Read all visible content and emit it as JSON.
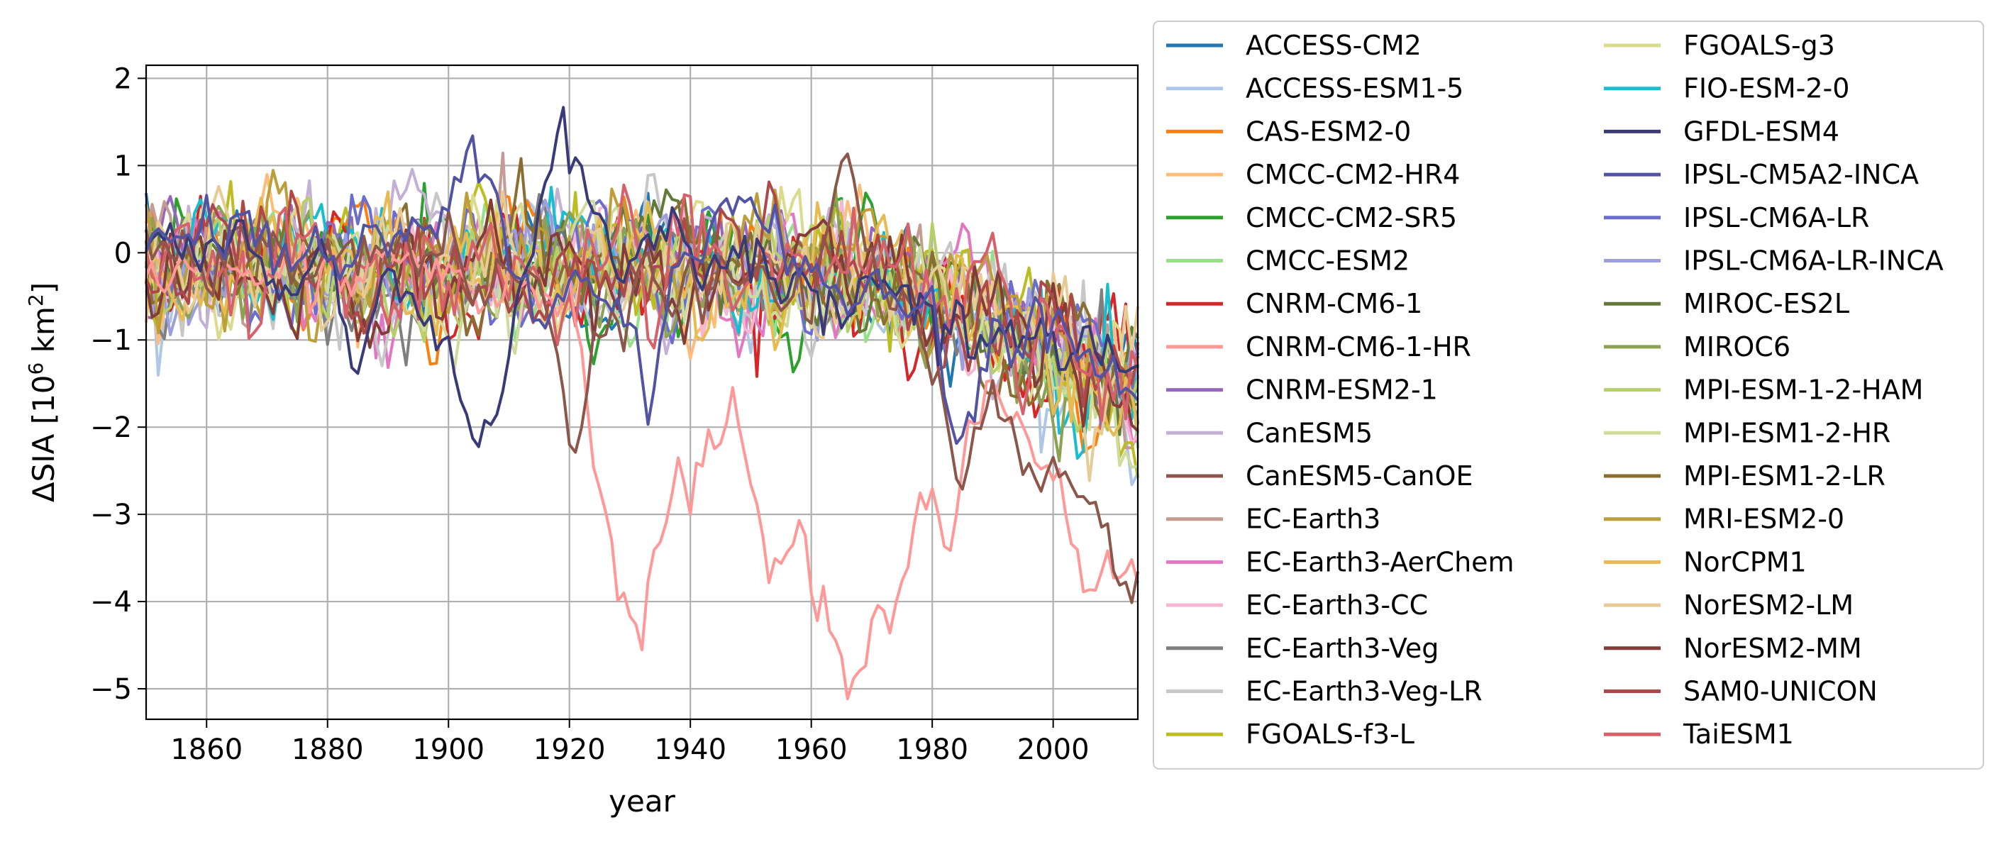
{
  "chart_data": {
    "type": "line",
    "title": "",
    "xlabel": "year",
    "ylabel": "ΔSIA [10",
    "ylabel_sup": "6",
    "ylabel_tail": " km",
    "ylabel_sup2": "2",
    "ylabel_end": "]",
    "xlim": [
      1850,
      2014
    ],
    "ylim": [
      -5.35,
      2.15
    ],
    "xticks": [
      1860,
      1880,
      1900,
      1920,
      1940,
      1960,
      1980,
      2000
    ],
    "yticks": [
      2,
      1,
      0,
      -1,
      -2,
      -3,
      -4,
      -5
    ],
    "grid": true,
    "legend_position": "outside-right",
    "series": [
      {
        "name": "ACCESS-CM2",
        "color": "#1f77b4",
        "highlight": false
      },
      {
        "name": "ACCESS-ESM1-5",
        "color": "#aec7e8",
        "highlight": false
      },
      {
        "name": "CAS-ESM2-0",
        "color": "#ff7f0e",
        "highlight": false
      },
      {
        "name": "CMCC-CM2-HR4",
        "color": "#ffbb78",
        "highlight": false
      },
      {
        "name": "CMCC-CM2-SR5",
        "color": "#2ca02c",
        "highlight": false
      },
      {
        "name": "CMCC-ESM2",
        "color": "#98df8a",
        "highlight": false
      },
      {
        "name": "CNRM-CM6-1",
        "color": "#d62728",
        "highlight": false
      },
      {
        "name": "CNRM-CM6-1-HR",
        "color": "#ff9896",
        "highlight": true,
        "keypoints": [
          [
            1850,
            -0.2
          ],
          [
            1905,
            -0.3
          ],
          [
            1920,
            -0.5
          ],
          [
            1925,
            -2.9
          ],
          [
            1928,
            -4.2
          ],
          [
            1930,
            -4.3
          ],
          [
            1935,
            -3.4
          ],
          [
            1938,
            -2.5
          ],
          [
            1940,
            -2.9
          ],
          [
            1943,
            -2.3
          ],
          [
            1947,
            -1.2
          ],
          [
            1950,
            -2.6
          ],
          [
            1953,
            -3.5
          ],
          [
            1956,
            -3.2
          ],
          [
            1958,
            -3.1
          ],
          [
            1960,
            -4.3
          ],
          [
            1962,
            -4.1
          ],
          [
            1964,
            -4.7
          ],
          [
            1966,
            -5.0
          ],
          [
            1968,
            -4.9
          ],
          [
            1970,
            -4.4
          ],
          [
            1973,
            -4.5
          ],
          [
            1976,
            -3.1
          ],
          [
            1980,
            -2.7
          ],
          [
            1983,
            -3.4
          ],
          [
            1986,
            -2.3
          ],
          [
            1990,
            -1.7
          ],
          [
            1995,
            -1.9
          ],
          [
            2000,
            -2.6
          ],
          [
            2005,
            -3.9
          ],
          [
            2010,
            -3.8
          ],
          [
            2014,
            -3.9
          ]
        ]
      },
      {
        "name": "CNRM-ESM2-1",
        "color": "#9467bd",
        "highlight": false
      },
      {
        "name": "CanESM5",
        "color": "#c5b0d5",
        "highlight": false
      },
      {
        "name": "CanESM5-CanOE",
        "color": "#8c564b",
        "highlight": true,
        "keypoints": [
          [
            1850,
            -0.1
          ],
          [
            1880,
            0.0
          ],
          [
            1900,
            -0.1
          ],
          [
            1915,
            -0.4
          ],
          [
            1920,
            -2.2
          ],
          [
            1925,
            -0.8
          ],
          [
            1930,
            -0.5
          ],
          [
            1940,
            -0.4
          ],
          [
            1950,
            -0.3
          ],
          [
            1960,
            -0.5
          ],
          [
            1965,
            0.9
          ],
          [
            1970,
            -0.2
          ],
          [
            1980,
            -1.0
          ],
          [
            1985,
            -2.8
          ],
          [
            1990,
            -1.5
          ],
          [
            1995,
            -2.6
          ],
          [
            2000,
            -2.5
          ],
          [
            2005,
            -2.9
          ],
          [
            2010,
            -3.2
          ],
          [
            2014,
            -3.6
          ]
        ]
      },
      {
        "name": "EC-Earth3",
        "color": "#c49c94",
        "highlight": false
      },
      {
        "name": "EC-Earth3-AerChem",
        "color": "#e377c2",
        "highlight": false
      },
      {
        "name": "EC-Earth3-CC",
        "color": "#f7b6d2",
        "highlight": false
      },
      {
        "name": "EC-Earth3-Veg",
        "color": "#7f7f7f",
        "highlight": false
      },
      {
        "name": "EC-Earth3-Veg-LR",
        "color": "#c7c7c7",
        "highlight": false
      },
      {
        "name": "FGOALS-f3-L",
        "color": "#bcbd22",
        "highlight": false
      },
      {
        "name": "FGOALS-g3",
        "color": "#dbdb8d",
        "highlight": false
      },
      {
        "name": "FIO-ESM-2-0",
        "color": "#17becf",
        "highlight": false
      },
      {
        "name": "GFDL-ESM4",
        "color": "#393b79",
        "highlight": true,
        "keypoints": [
          [
            1850,
            0.1
          ],
          [
            1880,
            -0.2
          ],
          [
            1885,
            -1.3
          ],
          [
            1890,
            -0.6
          ],
          [
            1900,
            -0.8
          ],
          [
            1903,
            -1.9
          ],
          [
            1905,
            -2.35
          ],
          [
            1908,
            -1.6
          ],
          [
            1912,
            -0.3
          ],
          [
            1916,
            1.1
          ],
          [
            1919,
            1.5
          ],
          [
            1925,
            0.2
          ],
          [
            1940,
            0.0
          ],
          [
            1960,
            -0.3
          ],
          [
            1980,
            -0.7
          ],
          [
            2000,
            -1.0
          ],
          [
            2014,
            -1.3
          ]
        ]
      },
      {
        "name": "IPSL-CM5A2-INCA",
        "color": "#5254a3",
        "highlight": true,
        "keypoints": [
          [
            1850,
            0.2
          ],
          [
            1880,
            0.0
          ],
          [
            1900,
            0.4
          ],
          [
            1903,
            1.3
          ],
          [
            1906,
            1.1
          ],
          [
            1910,
            -0.2
          ],
          [
            1930,
            -0.9
          ],
          [
            1933,
            -1.7
          ],
          [
            1937,
            -0.3
          ],
          [
            1945,
            0.3
          ],
          [
            1950,
            0.6
          ],
          [
            1960,
            -0.2
          ],
          [
            1980,
            -0.7
          ],
          [
            1983,
            -2.2
          ],
          [
            1990,
            -1.3
          ],
          [
            2000,
            -1.0
          ],
          [
            2014,
            -1.5
          ]
        ]
      },
      {
        "name": "IPSL-CM6A-LR",
        "color": "#6b6ecf",
        "highlight": false
      },
      {
        "name": "IPSL-CM6A-LR-INCA",
        "color": "#9c9ede",
        "highlight": false
      },
      {
        "name": "MIROC-ES2L",
        "color": "#637939",
        "highlight": false
      },
      {
        "name": "MIROC6",
        "color": "#8ca252",
        "highlight": false
      },
      {
        "name": "MPI-ESM-1-2-HAM",
        "color": "#b5cf6b",
        "highlight": false
      },
      {
        "name": "MPI-ESM1-2-HR",
        "color": "#cedb9c",
        "highlight": false
      },
      {
        "name": "MPI-ESM1-2-LR",
        "color": "#8c6d31",
        "highlight": false
      },
      {
        "name": "MRI-ESM2-0",
        "color": "#bd9e39",
        "highlight": false
      },
      {
        "name": "NorCPM1",
        "color": "#e7ba52",
        "highlight": false
      },
      {
        "name": "NorESM2-LM",
        "color": "#e7cb94",
        "highlight": false
      },
      {
        "name": "NorESM2-MM",
        "color": "#843c39",
        "highlight": false
      },
      {
        "name": "SAM0-UNICON",
        "color": "#ad494a",
        "highlight": false
      },
      {
        "name": "TaiESM1",
        "color": "#d6616b",
        "highlight": false
      }
    ]
  }
}
